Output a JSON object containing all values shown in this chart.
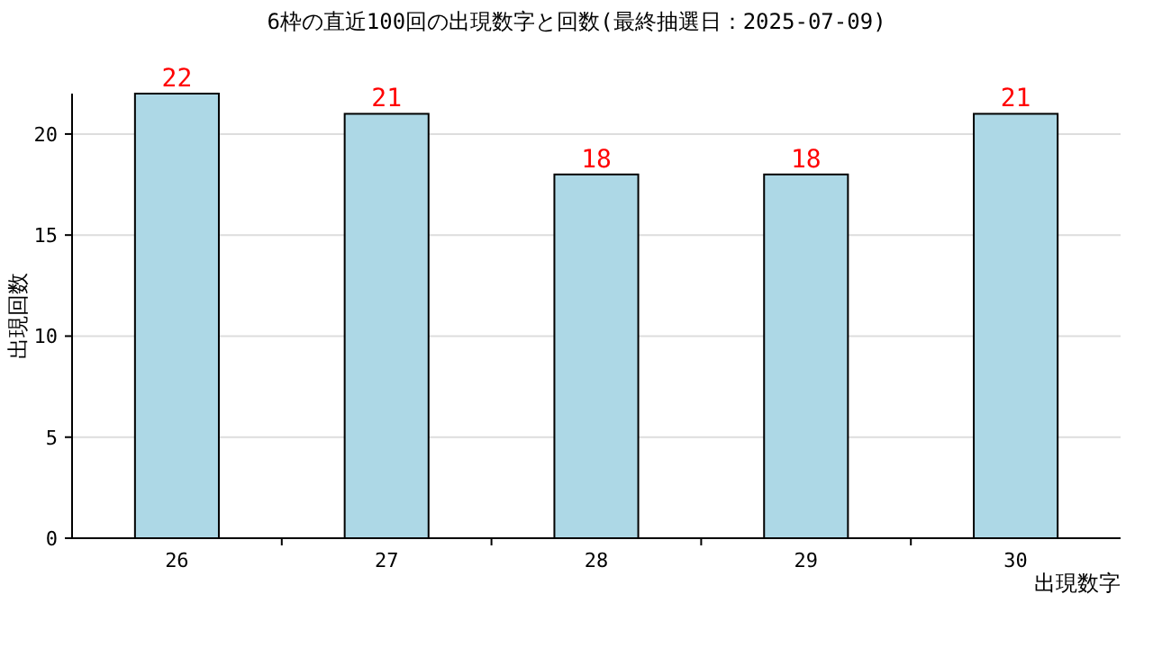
{
  "chart_data": {
    "type": "bar",
    "title": "6枠の直近100回の出現数字と回数(最終抽選日：2025-07-09)",
    "xlabel": "出現数字",
    "ylabel": "出現回数",
    "categories": [
      "26",
      "27",
      "28",
      "29",
      "30"
    ],
    "values": [
      22,
      21,
      18,
      18,
      21
    ],
    "color": "#add8e6",
    "ylim": [
      0,
      22
    ],
    "yticks": [
      0,
      5,
      10,
      15,
      20
    ],
    "grid": "y",
    "data_labels": true
  }
}
